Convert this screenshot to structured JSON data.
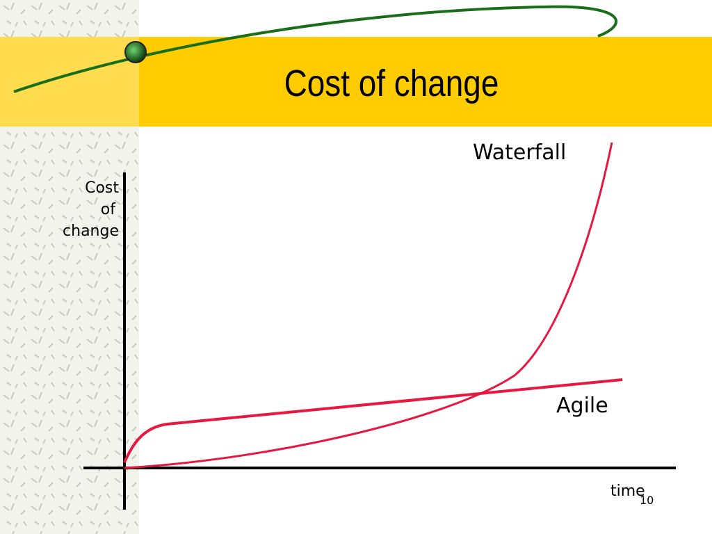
{
  "slide": {
    "title": "Cost of change",
    "page_number": "10"
  },
  "axes": {
    "y_label": [
      "Cost",
      "of",
      "change"
    ],
    "x_label": "time"
  },
  "curves": {
    "waterfall": "Waterfall",
    "agile": "Agile"
  }
}
